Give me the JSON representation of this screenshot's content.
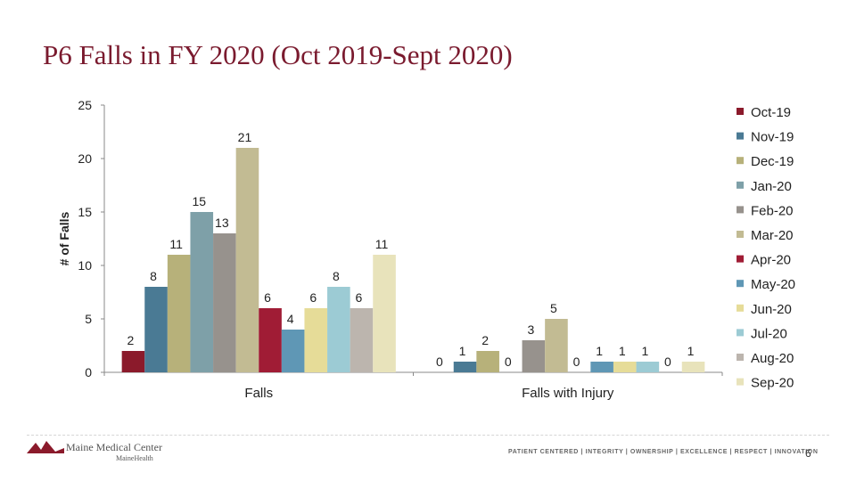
{
  "slide": {
    "title": "P6 Falls in FY 2020 (Oct 2019-Sept 2020)",
    "page_number": "6"
  },
  "footer": {
    "logo_name": "Maine Medical Center",
    "logo_sub": "MaineHealth",
    "values": "PATIENT CENTERED | INTEGRITY | OWNERSHIP | EXCELLENCE | RESPECT | INNOVATION"
  },
  "chart_data": {
    "type": "bar",
    "title": "",
    "xlabel": "",
    "ylabel": "# of Falls",
    "ylim": [
      0,
      25
    ],
    "yticks": [
      0,
      5,
      10,
      15,
      20,
      25
    ],
    "grid": false,
    "legend_position": "right",
    "categories": [
      "Falls",
      "Falls with Injury"
    ],
    "series": [
      {
        "name": "Oct-19",
        "color": "#8b1a2b",
        "values": [
          2,
          0
        ]
      },
      {
        "name": "Nov-19",
        "color": "#4a7a94",
        "values": [
          8,
          1
        ]
      },
      {
        "name": "Dec-19",
        "color": "#b7b17a",
        "values": [
          11,
          2
        ]
      },
      {
        "name": "Jan-20",
        "color": "#7ea0a8",
        "values": [
          15,
          0
        ]
      },
      {
        "name": "Feb-20",
        "color": "#97928d",
        "values": [
          13,
          3
        ]
      },
      {
        "name": "Mar-20",
        "color": "#c2bb93",
        "values": [
          21,
          5
        ]
      },
      {
        "name": "Apr-20",
        "color": "#a01c35",
        "values": [
          6,
          0
        ]
      },
      {
        "name": "May-20",
        "color": "#5f97b5",
        "values": [
          4,
          1
        ]
      },
      {
        "name": "Jun-20",
        "color": "#e6dc98",
        "values": [
          6,
          1
        ]
      },
      {
        "name": "Jul-20",
        "color": "#9ccbd4",
        "values": [
          8,
          1
        ]
      },
      {
        "name": "Aug-20",
        "color": "#bcb5ae",
        "values": [
          6,
          0
        ]
      },
      {
        "name": "Sep-20",
        "color": "#e8e3bb",
        "values": [
          11,
          1
        ]
      }
    ]
  }
}
